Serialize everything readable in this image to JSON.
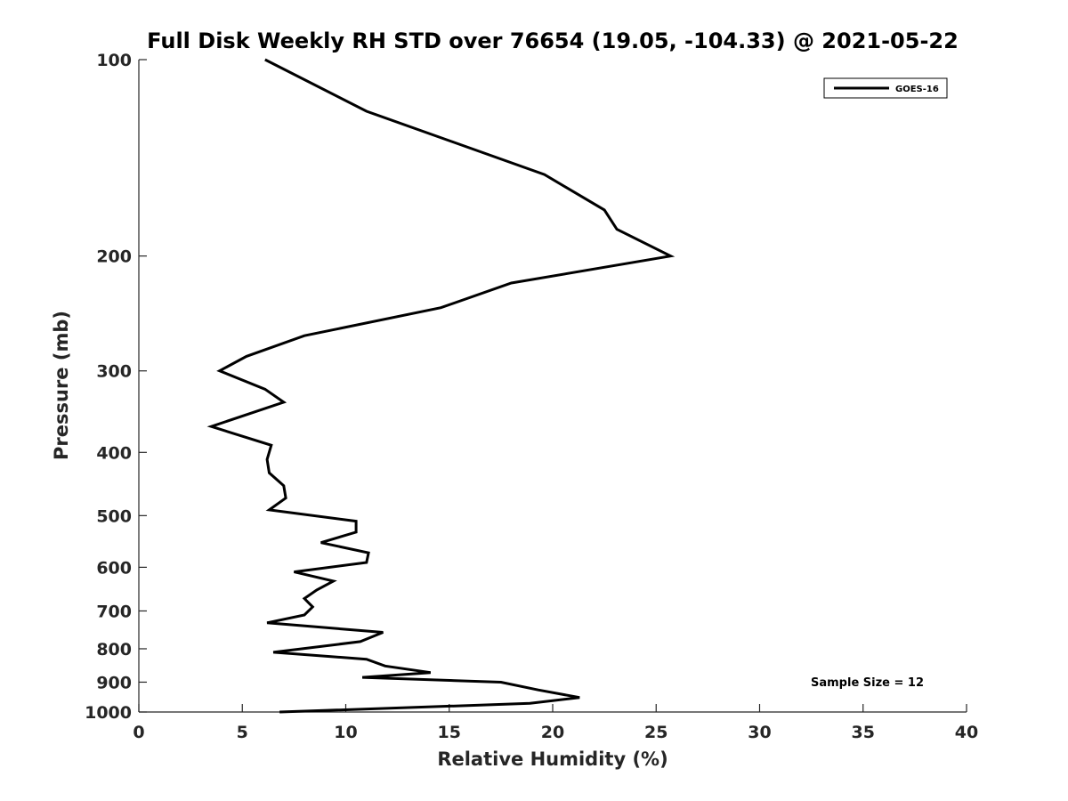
{
  "chart_data": {
    "type": "line",
    "title": "Full Disk Weekly RH STD over 76654 (19.05, -104.33) @ 2021-05-22",
    "xlabel": "Relative Humidity (%)",
    "ylabel": "Pressure (mb)",
    "xlim": [
      0,
      40
    ],
    "ylim": [
      100,
      1000
    ],
    "y_scale": "log",
    "y_reversed": true,
    "grid": false,
    "legend_position": "top-right",
    "x_ticks": [
      0,
      5,
      10,
      15,
      20,
      25,
      30,
      35,
      40
    ],
    "x_tick_labels": [
      "0",
      "5",
      "10",
      "15",
      "20",
      "25",
      "30",
      "35",
      "40"
    ],
    "y_ticks": [
      100,
      200,
      300,
      400,
      500,
      600,
      700,
      800,
      900,
      1000
    ],
    "y_tick_labels": [
      "100",
      "200",
      "300",
      "400",
      "500",
      "600",
      "700",
      "800",
      "900",
      "1000"
    ],
    "annotation": "Sample Size = 12",
    "series": [
      {
        "name": "GOES-16",
        "color": "#000000",
        "x": [
          6.1,
          11.0,
          19.6,
          22.5,
          23.1,
          25.7,
          18.0,
          14.6,
          8.0,
          5.2,
          3.9,
          6.1,
          7.0,
          3.5,
          6.4,
          6.2,
          6.3,
          7.0,
          7.1,
          6.3,
          10.5,
          10.5,
          8.8,
          11.1,
          11.0,
          7.5,
          9.4,
          8.6,
          8.0,
          8.4,
          8.0,
          6.2,
          11.8,
          10.7,
          6.5,
          11.0,
          11.9,
          14.1,
          10.8,
          17.5,
          19.3,
          21.3,
          18.9,
          6.8
        ],
        "y": [
          100,
          120,
          150,
          170,
          182,
          200,
          220,
          240,
          265,
          285,
          300,
          320,
          335,
          365,
          390,
          410,
          430,
          450,
          470,
          490,
          510,
          530,
          550,
          570,
          590,
          610,
          630,
          650,
          670,
          690,
          710,
          730,
          755,
          780,
          810,
          830,
          850,
          870,
          885,
          900,
          925,
          950,
          970,
          1000
        ]
      }
    ]
  }
}
